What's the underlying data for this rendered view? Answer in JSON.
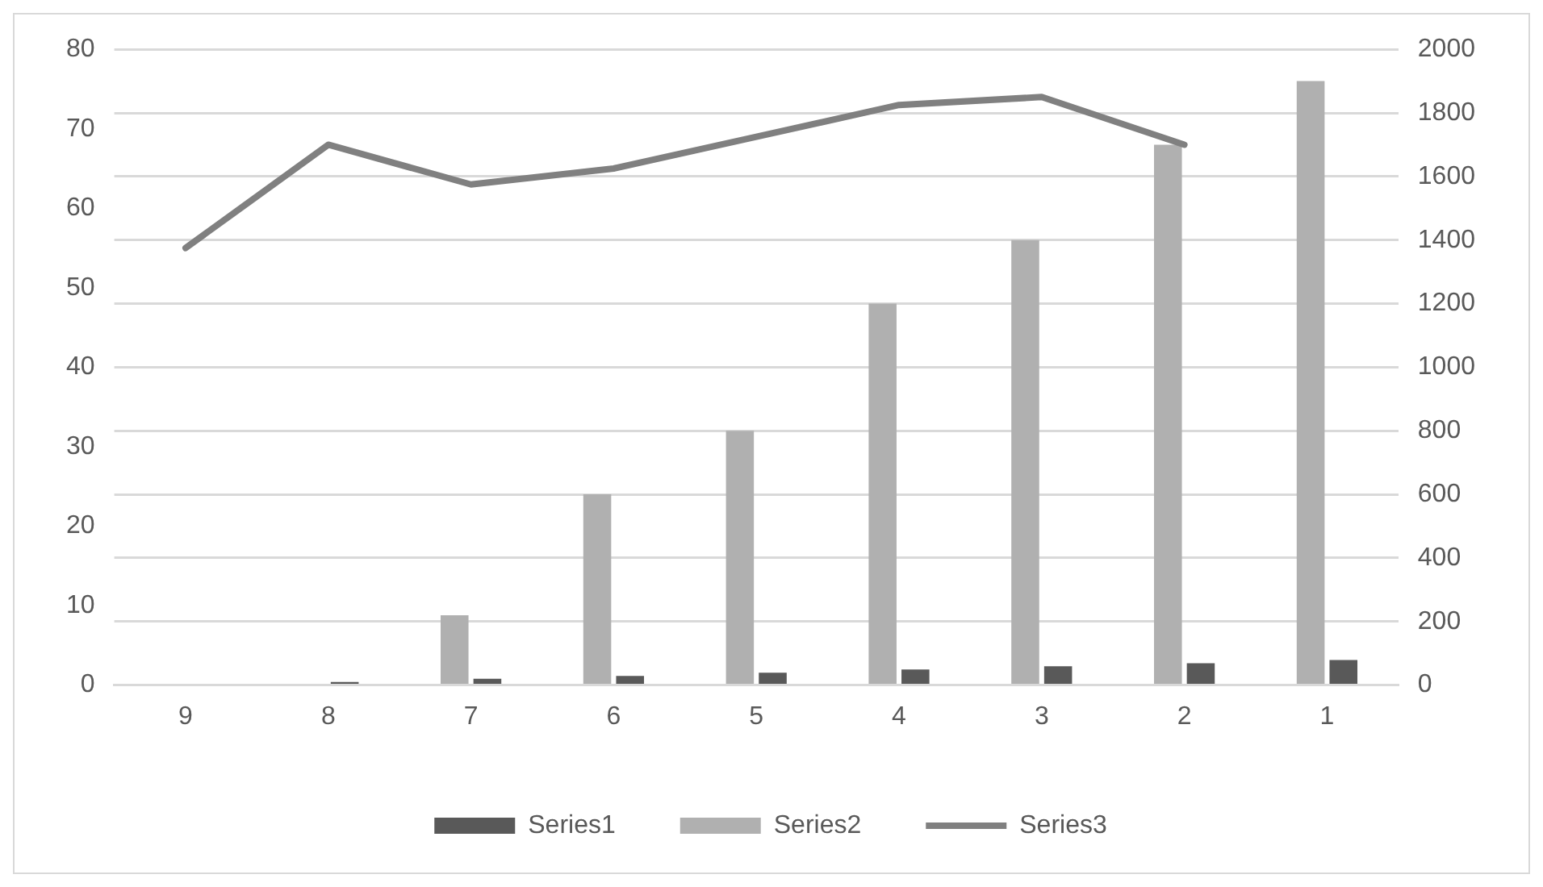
{
  "chart_data": {
    "type": "bar",
    "categories": [
      "9",
      "8",
      "7",
      "6",
      "5",
      "4",
      "3",
      "2",
      "1"
    ],
    "series": [
      {
        "name": "Series1",
        "color": "#595959",
        "axis": "y2",
        "values": [
          0,
          10,
          20,
          29,
          39,
          49,
          59,
          69,
          79
        ]
      },
      {
        "name": "Series2",
        "color": "#b0b0b0",
        "axis": "y2",
        "values": [
          0,
          0,
          220,
          600,
          800,
          1200,
          1400,
          1700,
          1900
        ]
      },
      {
        "name": "Series3",
        "color": "#808080",
        "type": "line",
        "axis": "y",
        "values": [
          55,
          68,
          63,
          65,
          69,
          73,
          74,
          68,
          null
        ]
      }
    ],
    "ylim": [
      0,
      80
    ],
    "yticks": [
      0,
      10,
      20,
      30,
      40,
      50,
      60,
      70,
      80
    ],
    "y2lim": [
      0,
      2000
    ],
    "y2ticks": [
      0,
      200,
      400,
      600,
      800,
      1000,
      1200,
      1400,
      1600,
      1800,
      2000
    ],
    "grid": "y2",
    "legend": "bottom"
  }
}
